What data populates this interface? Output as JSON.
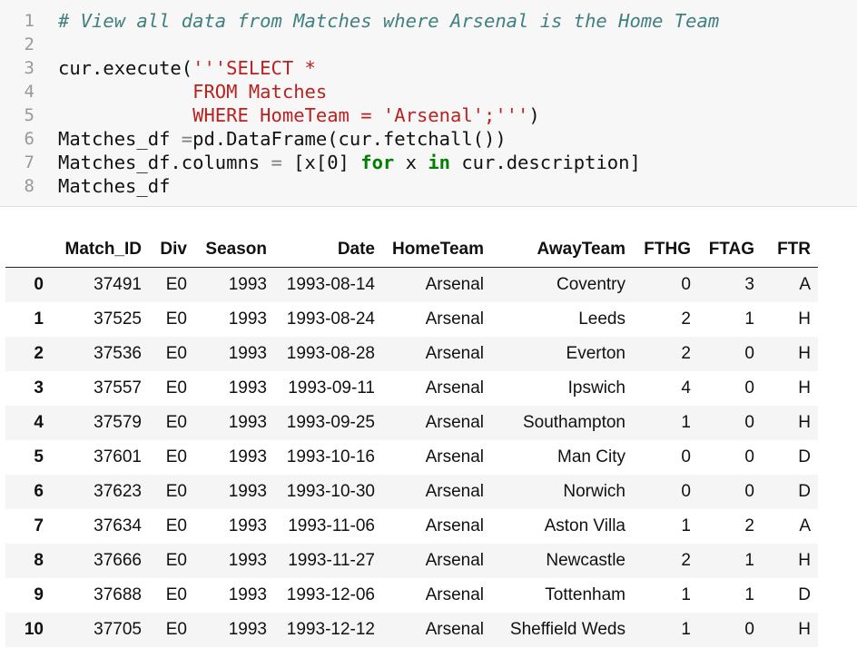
{
  "code_cell": {
    "line_numbers": [
      "1",
      "2",
      "3",
      "4",
      "5",
      "6",
      "7",
      "8"
    ],
    "lines": [
      [
        {
          "t": "comment",
          "v": "# View all data from Matches where Arsenal is the Home Team"
        }
      ],
      [],
      [
        {
          "t": "plain",
          "v": "cur.execute("
        },
        {
          "t": "str",
          "v": "'''SELECT *"
        }
      ],
      [
        {
          "t": "plain",
          "v": "            "
        },
        {
          "t": "str",
          "v": "FROM Matches"
        }
      ],
      [
        {
          "t": "plain",
          "v": "            "
        },
        {
          "t": "str",
          "v": "WHERE HomeTeam = 'Arsenal';'''"
        },
        {
          "t": "plain",
          "v": ")"
        }
      ],
      [
        {
          "t": "plain",
          "v": "Matches_df "
        },
        {
          "t": "op",
          "v": "="
        },
        {
          "t": "plain",
          "v": "pd.DataFrame(cur.fetchall())"
        }
      ],
      [
        {
          "t": "plain",
          "v": "Matches_df.columns "
        },
        {
          "t": "op",
          "v": "="
        },
        {
          "t": "plain",
          "v": " [x[0] "
        },
        {
          "t": "kw",
          "v": "for"
        },
        {
          "t": "plain",
          "v": " x "
        },
        {
          "t": "kw",
          "v": "in"
        },
        {
          "t": "plain",
          "v": " cur.description]"
        }
      ],
      [
        {
          "t": "plain",
          "v": "Matches_df"
        }
      ]
    ]
  },
  "dataframe": {
    "columns": [
      "",
      "Match_ID",
      "Div",
      "Season",
      "Date",
      "HomeTeam",
      "AwayTeam",
      "FTHG",
      "FTAG",
      "FTR"
    ],
    "rows": [
      [
        "0",
        "37491",
        "E0",
        "1993",
        "1993-08-14",
        "Arsenal",
        "Coventry",
        "0",
        "3",
        "A"
      ],
      [
        "1",
        "37525",
        "E0",
        "1993",
        "1993-08-24",
        "Arsenal",
        "Leeds",
        "2",
        "1",
        "H"
      ],
      [
        "2",
        "37536",
        "E0",
        "1993",
        "1993-08-28",
        "Arsenal",
        "Everton",
        "2",
        "0",
        "H"
      ],
      [
        "3",
        "37557",
        "E0",
        "1993",
        "1993-09-11",
        "Arsenal",
        "Ipswich",
        "4",
        "0",
        "H"
      ],
      [
        "4",
        "37579",
        "E0",
        "1993",
        "1993-09-25",
        "Arsenal",
        "Southampton",
        "1",
        "0",
        "H"
      ],
      [
        "5",
        "37601",
        "E0",
        "1993",
        "1993-10-16",
        "Arsenal",
        "Man City",
        "0",
        "0",
        "D"
      ],
      [
        "6",
        "37623",
        "E0",
        "1993",
        "1993-10-30",
        "Arsenal",
        "Norwich",
        "0",
        "0",
        "D"
      ],
      [
        "7",
        "37634",
        "E0",
        "1993",
        "1993-11-06",
        "Arsenal",
        "Aston Villa",
        "1",
        "2",
        "A"
      ],
      [
        "8",
        "37666",
        "E0",
        "1993",
        "1993-11-27",
        "Arsenal",
        "Newcastle",
        "2",
        "1",
        "H"
      ],
      [
        "9",
        "37688",
        "E0",
        "1993",
        "1993-12-06",
        "Arsenal",
        "Tottenham",
        "1",
        "1",
        "D"
      ],
      [
        "10",
        "37705",
        "E0",
        "1993",
        "1993-12-12",
        "Arsenal",
        "Sheffield Weds",
        "1",
        "0",
        "H"
      ]
    ]
  }
}
